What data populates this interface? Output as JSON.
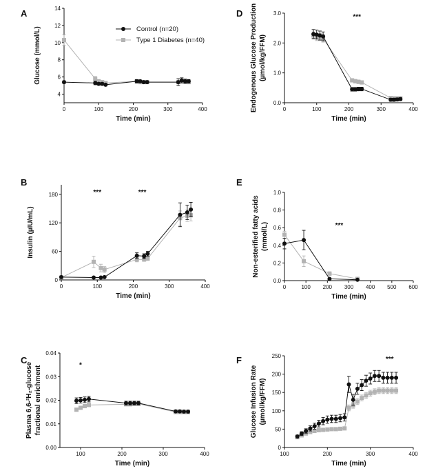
{
  "legend": {
    "control": "Control (n=20)",
    "t1d": "Type 1 Diabetes (n=40)"
  },
  "colors": {
    "control": "#111111",
    "t1d": "#b3b3b3"
  },
  "chart_data": [
    {
      "id": "A",
      "type": "line",
      "letter": "A",
      "xlabel": "Time (min)",
      "ylabel": "Glucose (mmol/L)",
      "xlim": [
        0,
        400
      ],
      "ylim": [
        3,
        14
      ],
      "xticks": [
        0,
        100,
        200,
        300,
        400
      ],
      "yticks": [
        4,
        6,
        8,
        10,
        12,
        14
      ],
      "ytick_labels": [
        "4",
        "6",
        "8",
        "10",
        "12",
        "14"
      ],
      "annotations": [],
      "series": [
        {
          "name": "Control (n=20)",
          "key": "control",
          "x": [
            0,
            90,
            100,
            110,
            120,
            210,
            220,
            230,
            240,
            330,
            340,
            350,
            360
          ],
          "y": [
            5.4,
            5.3,
            5.2,
            5.2,
            5.1,
            5.5,
            5.5,
            5.4,
            5.4,
            5.4,
            5.6,
            5.5,
            5.5
          ],
          "err": [
            0.15,
            0.2,
            0.15,
            0.15,
            0.15,
            0.2,
            0.15,
            0.15,
            0.15,
            0.4,
            0.3,
            0.25,
            0.2
          ]
        },
        {
          "name": "Type 1 Diabetes (n=40)",
          "key": "t1d",
          "x": [
            0,
            90,
            100,
            110,
            120,
            210,
            220,
            230,
            240,
            330,
            340,
            350,
            360
          ],
          "y": [
            10.3,
            5.8,
            5.5,
            5.4,
            5.3,
            5.5,
            5.4,
            5.4,
            5.4,
            5.4,
            5.5,
            5.5,
            5.4
          ],
          "err": [
            0.6,
            0.25,
            0.2,
            0.15,
            0.15,
            0.15,
            0.15,
            0.15,
            0.15,
            0.15,
            0.15,
            0.15,
            0.15
          ]
        }
      ]
    },
    {
      "id": "D",
      "type": "line",
      "letter": "D",
      "xlabel": "Time (min)",
      "ylabel": "Endogenous Glucose Production",
      "ylabel2": "(µmol/kg/FFM)",
      "xlim": [
        0,
        400
      ],
      "ylim": [
        0,
        3.0
      ],
      "xticks": [
        0,
        100,
        200,
        300,
        400
      ],
      "yticks": [
        0,
        1,
        2,
        3
      ],
      "ytick_labels": [
        "0.0",
        "1.0",
        "2.0",
        "3.0"
      ],
      "annotations": [
        {
          "text": "***",
          "x": 225,
          "y": 2.8
        }
      ],
      "series": [
        {
          "name": "Control (n=20)",
          "key": "control",
          "x": [
            90,
            100,
            110,
            120,
            210,
            220,
            230,
            240,
            330,
            340,
            350,
            360
          ],
          "y": [
            2.3,
            2.28,
            2.25,
            2.22,
            0.45,
            0.45,
            0.46,
            0.46,
            0.1,
            0.1,
            0.11,
            0.12
          ],
          "err": [
            0.15,
            0.15,
            0.15,
            0.15,
            0.06,
            0.06,
            0.06,
            0.06,
            0.05,
            0.05,
            0.05,
            0.05
          ]
        },
        {
          "name": "Type 1 Diabetes (n=40)",
          "key": "t1d",
          "x": [
            90,
            100,
            110,
            120,
            210,
            220,
            230,
            240,
            330,
            340,
            350,
            360
          ],
          "y": [
            2.25,
            2.2,
            2.2,
            2.15,
            0.75,
            0.72,
            0.7,
            0.68,
            0.16,
            0.15,
            0.15,
            0.15
          ],
          "err": [
            0.12,
            0.12,
            0.12,
            0.12,
            0.06,
            0.06,
            0.06,
            0.06,
            0.05,
            0.05,
            0.05,
            0.05
          ]
        }
      ]
    },
    {
      "id": "B",
      "type": "line",
      "letter": "B",
      "xlabel": "Time (min)",
      "ylabel": "Insulin (µIU/mL)",
      "xlim": [
        0,
        400
      ],
      "ylim": [
        0,
        200
      ],
      "xticks": [
        0,
        100,
        200,
        300,
        400
      ],
      "yticks": [
        0,
        60,
        120,
        180
      ],
      "ytick_labels": [
        "0",
        "60",
        "120",
        "180"
      ],
      "annotations": [
        {
          "text": "***",
          "x": 100,
          "y": 180
        },
        {
          "text": "***",
          "x": 225,
          "y": 180
        }
      ],
      "series": [
        {
          "name": "Control (n=20)",
          "key": "control",
          "x": [
            0,
            90,
            110,
            120,
            210,
            230,
            240,
            330,
            350,
            360
          ],
          "y": [
            6,
            5,
            5,
            6,
            51,
            50,
            55,
            137,
            142,
            148
          ],
          "err": [
            2,
            1,
            1,
            1,
            6,
            5,
            5,
            25,
            15,
            15
          ]
        },
        {
          "name": "Type 1 Diabetes (n=40)",
          "key": "t1d",
          "x": [
            0,
            90,
            110,
            120,
            210,
            230,
            240,
            330,
            350,
            360
          ],
          "y": [
            5,
            38,
            25,
            22,
            43,
            43,
            45,
            130,
            135,
            136
          ],
          "err": [
            2,
            12,
            8,
            6,
            5,
            4,
            4,
            15,
            12,
            12
          ]
        }
      ]
    },
    {
      "id": "E",
      "type": "line",
      "letter": "E",
      "xlabel": "Time (min)",
      "ylabel": "Non-esterified fatty acids",
      "ylabel2": "(mmol/L)",
      "xlim": [
        0,
        600
      ],
      "ylim": [
        0,
        1.0
      ],
      "xticks": [
        0,
        100,
        200,
        300,
        400,
        500,
        600
      ],
      "yticks": [
        0,
        0.2,
        0.4,
        0.6,
        0.8,
        1.0
      ],
      "ytick_labels": [
        "0.0",
        "0.2",
        "0.4",
        "0.6",
        "0.8",
        "1.0"
      ],
      "annotations": [
        {
          "text": "***",
          "x": 255,
          "y": 0.6
        }
      ],
      "series": [
        {
          "name": "Control (n=20)",
          "key": "control",
          "x": [
            0,
            90,
            210,
            340
          ],
          "y": [
            0.42,
            0.46,
            0.02,
            0.01
          ],
          "err": [
            0.06,
            0.11,
            0.01,
            0.01
          ]
        },
        {
          "name": "Type 1 Diabetes (n=40)",
          "key": "t1d",
          "x": [
            0,
            90,
            210,
            340
          ],
          "y": [
            0.52,
            0.22,
            0.08,
            0.02
          ],
          "err": [
            0.04,
            0.06,
            0.02,
            0.01
          ]
        }
      ]
    },
    {
      "id": "C",
      "type": "line",
      "letter": "C",
      "xlabel": "Time (min)",
      "ylabel": "Plasma 6,6-²H₂-glucose",
      "ylabel2": "fractional enrichment",
      "xlim": [
        50,
        400
      ],
      "ylim": [
        0,
        0.04
      ],
      "xticks": [
        100,
        200,
        300,
        400
      ],
      "yticks": [
        0,
        0.01,
        0.02,
        0.03,
        0.04
      ],
      "ytick_labels": [
        "0.00",
        "0.01",
        "0.02",
        "0.03",
        "0.04"
      ],
      "annotations": [
        {
          "text": "*",
          "x": 100,
          "y": 0.034
        }
      ],
      "series": [
        {
          "name": "Control (n=20)",
          "key": "control",
          "x": [
            90,
            100,
            110,
            120,
            210,
            220,
            230,
            240,
            330,
            340,
            350,
            360
          ],
          "y": [
            0.0198,
            0.02,
            0.0202,
            0.0205,
            0.0188,
            0.0188,
            0.0188,
            0.0188,
            0.0153,
            0.0153,
            0.0152,
            0.0152
          ],
          "err": [
            0.0012,
            0.0012,
            0.0012,
            0.0012,
            0.0008,
            0.0008,
            0.0008,
            0.0008,
            0.0006,
            0.0006,
            0.0006,
            0.0006
          ]
        },
        {
          "name": "Type 1 Diabetes (n=40)",
          "key": "t1d",
          "x": [
            90,
            100,
            110,
            120,
            210,
            220,
            230,
            240,
            330,
            340,
            350,
            360
          ],
          "y": [
            0.016,
            0.0168,
            0.0175,
            0.018,
            0.0183,
            0.0183,
            0.0185,
            0.0185,
            0.015,
            0.015,
            0.015,
            0.015
          ],
          "err": [
            0.0007,
            0.0007,
            0.0007,
            0.0007,
            0.0006,
            0.0006,
            0.0006,
            0.0006,
            0.0005,
            0.0005,
            0.0005,
            0.0005
          ]
        }
      ]
    },
    {
      "id": "F",
      "type": "line",
      "letter": "F",
      "xlabel": "Time (min)",
      "ylabel": "Glucose Infusion Rate",
      "ylabel2": "(µmol/kg/FFM)",
      "xlim": [
        100,
        400
      ],
      "ylim": [
        0,
        250
      ],
      "xticks": [
        100,
        200,
        300,
        400
      ],
      "yticks": [
        0,
        50,
        100,
        150,
        200,
        250
      ],
      "ytick_labels": [
        "0",
        "50",
        "100",
        "150",
        "200",
        "250"
      ],
      "annotations": [
        {
          "text": "***",
          "x": 345,
          "y": 235
        }
      ],
      "series": [
        {
          "name": "Control (n=20)",
          "key": "control",
          "x": [
            130,
            140,
            150,
            160,
            170,
            180,
            190,
            200,
            210,
            220,
            230,
            240,
            250,
            260,
            270,
            280,
            290,
            300,
            310,
            320,
            330,
            340,
            350,
            360
          ],
          "y": [
            30,
            38,
            45,
            52,
            58,
            65,
            72,
            76,
            78,
            78,
            80,
            82,
            172,
            130,
            160,
            170,
            182,
            188,
            195,
            195,
            190,
            190,
            190,
            190
          ],
          "err": [
            4,
            5,
            6,
            7,
            8,
            9,
            10,
            10,
            10,
            10,
            10,
            10,
            22,
            15,
            15,
            15,
            15,
            15,
            15,
            15,
            15,
            15,
            15,
            15
          ]
        },
        {
          "name": "Type 1 Diabetes (n=40)",
          "key": "t1d",
          "x": [
            130,
            140,
            150,
            160,
            170,
            180,
            190,
            200,
            210,
            220,
            230,
            240,
            250,
            260,
            270,
            280,
            290,
            300,
            310,
            320,
            330,
            340,
            350,
            360
          ],
          "y": [
            28,
            33,
            38,
            42,
            45,
            47,
            48,
            49,
            50,
            50,
            51,
            52,
            108,
            115,
            125,
            135,
            142,
            148,
            152,
            155,
            155,
            155,
            155,
            155
          ],
          "err": [
            3,
            3,
            4,
            4,
            4,
            4,
            4,
            4,
            4,
            4,
            4,
            4,
            8,
            8,
            8,
            8,
            8,
            8,
            8,
            8,
            8,
            8,
            8,
            8
          ]
        }
      ]
    }
  ]
}
